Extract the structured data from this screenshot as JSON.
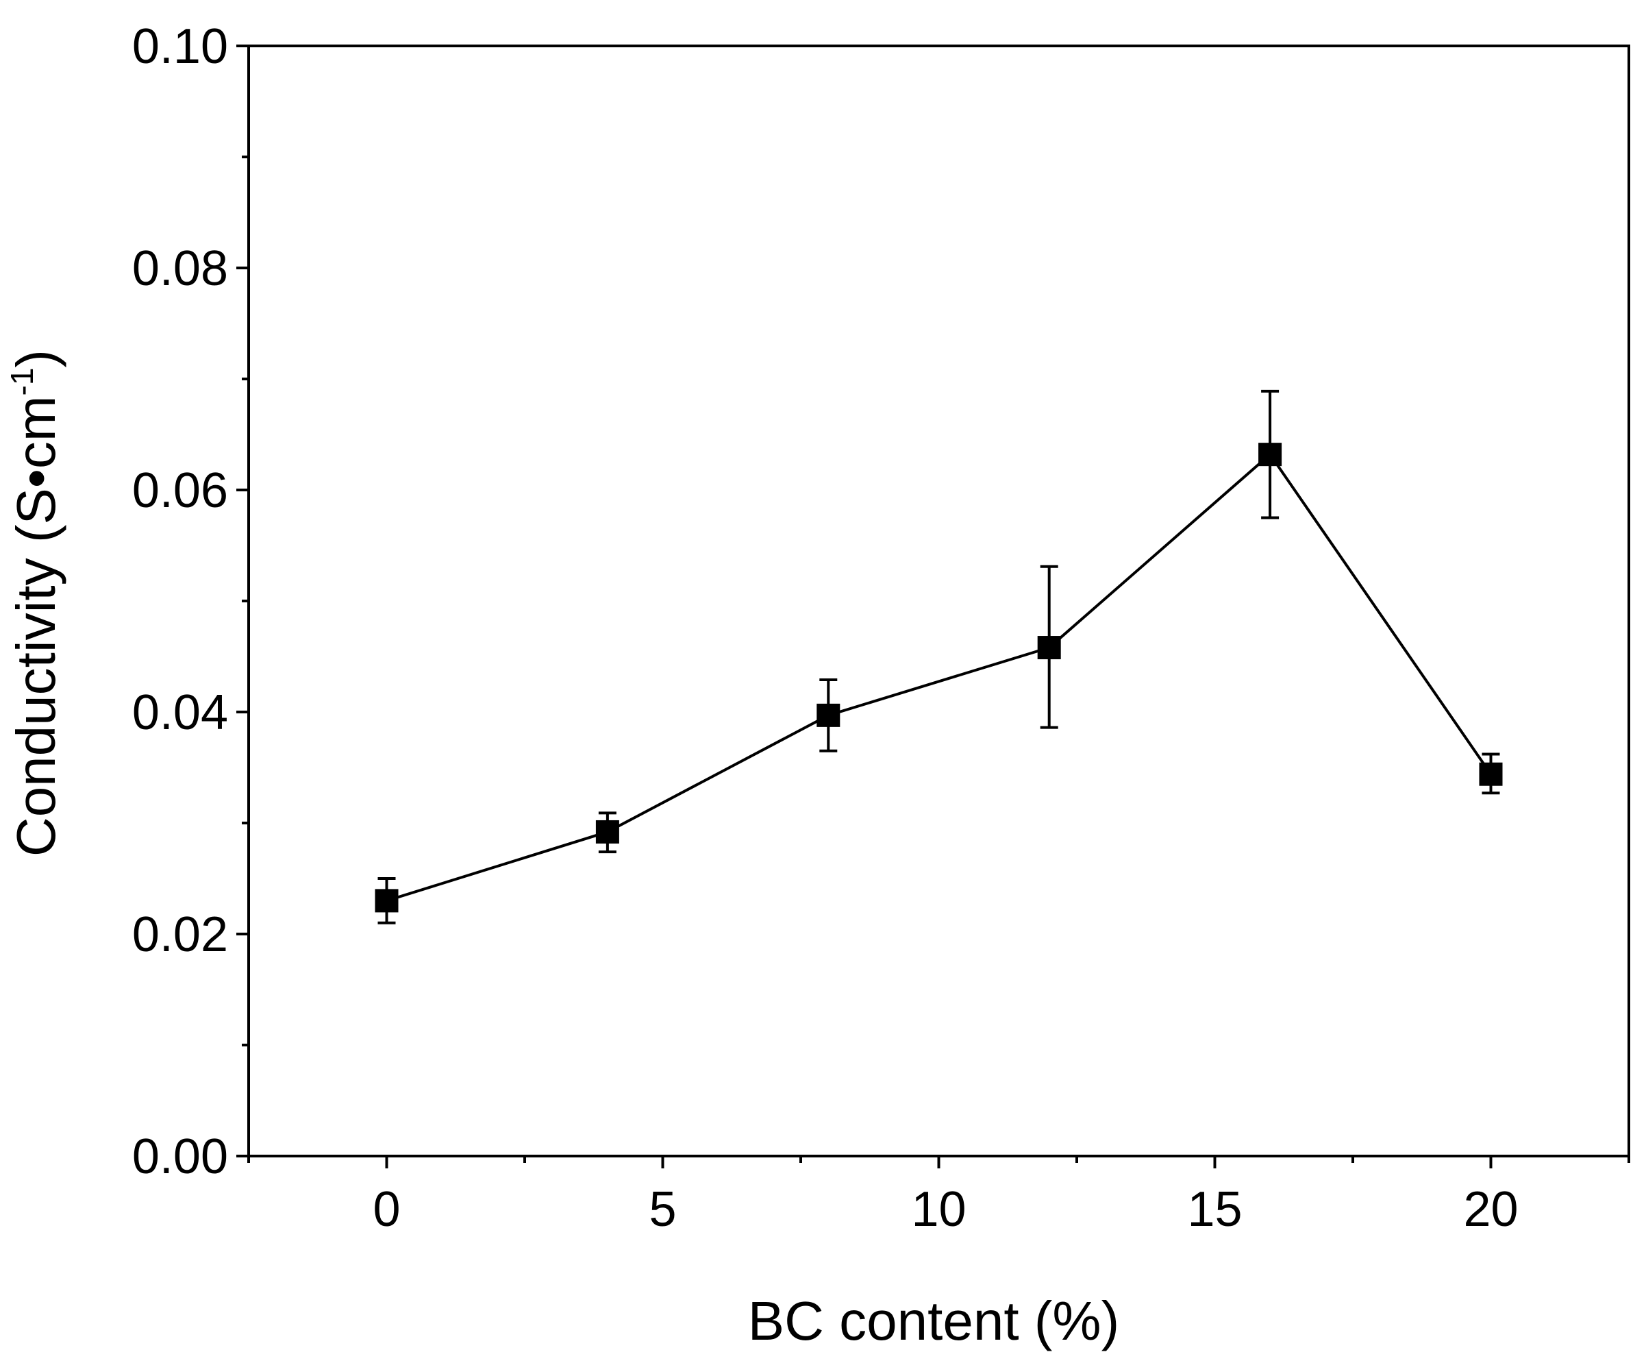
{
  "chart_data": {
    "type": "line",
    "title": "",
    "xlabel": "BC content (%)",
    "ylabel": "Conductivity (S•cm",
    "ylabel_sup": "-1",
    "ylabel_close": ")",
    "xlim": [
      -2.5,
      22.5
    ],
    "ylim": [
      0.0,
      0.1
    ],
    "x_ticks": [
      0,
      5,
      10,
      15,
      20
    ],
    "x_tick_labels": [
      "0",
      "5",
      "10",
      "15",
      "20"
    ],
    "x_minor_ticks": [
      -2.5,
      2.5,
      7.5,
      12.5,
      17.5,
      22.5
    ],
    "y_ticks": [
      0.0,
      0.02,
      0.04,
      0.06,
      0.08,
      0.1
    ],
    "y_tick_labels": [
      "0.00",
      "0.02",
      "0.04",
      "0.06",
      "0.08",
      "0.10"
    ],
    "y_minor_ticks": [
      0.01,
      0.03,
      0.05,
      0.07,
      0.09
    ],
    "grid": false,
    "legend": "none",
    "marker": "square",
    "color": "#000000",
    "series": [
      {
        "x": [
          0,
          4,
          8,
          12,
          16,
          20
        ],
        "y": [
          0.023,
          0.0292,
          0.0397,
          0.0458,
          0.0632,
          0.0344
        ],
        "err_low": [
          0.021,
          0.0274,
          0.0365,
          0.0386,
          0.0575,
          0.0327
        ],
        "err_high": [
          0.025,
          0.0309,
          0.0429,
          0.0531,
          0.0689,
          0.0362
        ]
      }
    ]
  }
}
